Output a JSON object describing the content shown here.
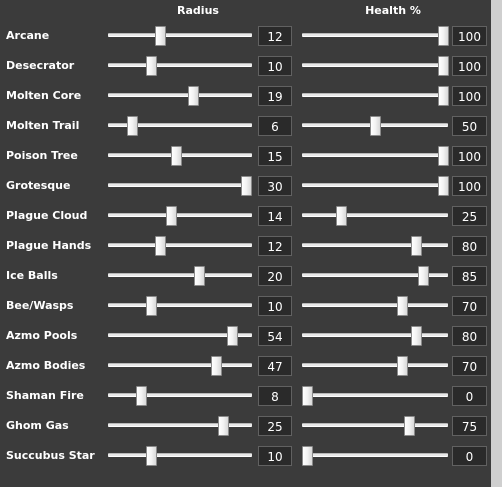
{
  "headers": {
    "radius": "Radius",
    "health": "Health %"
  },
  "rows": [
    {
      "label": "Arcane",
      "radius": 12,
      "health": 100
    },
    {
      "label": "Desecrator",
      "radius": 10,
      "health": 100
    },
    {
      "label": "Molten Core",
      "radius": 19,
      "health": 100
    },
    {
      "label": "Molten Trail",
      "radius": 6,
      "health": 50
    },
    {
      "label": "Poison Tree",
      "radius": 15,
      "health": 100
    },
    {
      "label": "Grotesque",
      "radius": 30,
      "health": 100
    },
    {
      "label": "Plague Cloud",
      "radius": 14,
      "health": 25
    },
    {
      "label": "Plague Hands",
      "radius": 12,
      "health": 80
    },
    {
      "label": "Ice Balls",
      "radius": 20,
      "health": 85
    },
    {
      "label": "Bee/Wasps",
      "radius": 10,
      "health": 70
    },
    {
      "label": "Azmo Pools",
      "radius": 54,
      "health": 80
    },
    {
      "label": "Azmo Bodies",
      "radius": 47,
      "health": 70
    },
    {
      "label": "Shaman Fire",
      "radius": 8,
      "health": 0
    },
    {
      "label": "Ghom Gas",
      "radius": 25,
      "health": 75
    },
    {
      "label": "Succubus Star",
      "radius": 10,
      "health": 0
    }
  ],
  "sliders": {
    "radius_fraction": [
      0.35,
      0.28,
      0.6,
      0.14,
      0.47,
      0.99,
      0.43,
      0.35,
      0.64,
      0.28,
      0.89,
      0.77,
      0.21,
      0.82,
      0.28
    ],
    "health_fraction": [
      1.0,
      1.0,
      1.0,
      0.5,
      1.0,
      1.0,
      0.25,
      0.8,
      0.85,
      0.7,
      0.8,
      0.7,
      0.0,
      0.75,
      0.0
    ]
  }
}
